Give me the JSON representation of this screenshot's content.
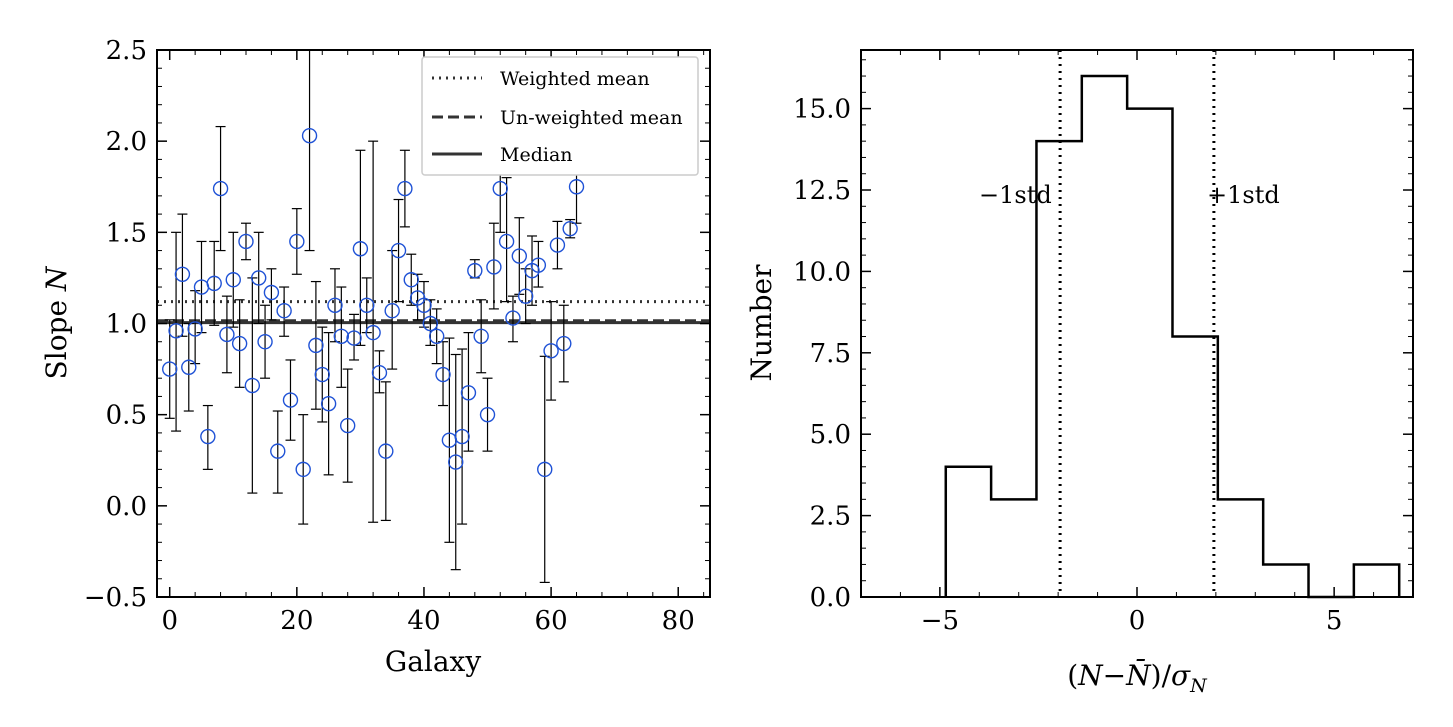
{
  "chart_data": [
    {
      "type": "scatter",
      "xlabel": "Galaxy",
      "ylabel_prefix": "Slope ",
      "ylabel_var": "N",
      "xlim": [
        -2,
        85
      ],
      "ylim": [
        -0.5,
        2.5
      ],
      "xticks": [
        0,
        20,
        40,
        60,
        80
      ],
      "xtick_labels": [
        "0",
        "20",
        "40",
        "60",
        "80"
      ],
      "yticks": [
        -0.5,
        0.0,
        0.5,
        1.0,
        1.5,
        2.0,
        2.5
      ],
      "ytick_labels": [
        "−0.5",
        "0.0",
        "0.5",
        "1.0",
        "1.5",
        "2.0",
        "2.5"
      ],
      "marker_color": "#1f52d6",
      "lines": [
        {
          "name": "Weighted mean",
          "y": 1.12,
          "style": "dotted"
        },
        {
          "name": "Un-weighted mean",
          "y": 1.015,
          "style": "dashed"
        },
        {
          "name": "Median",
          "y": 1.005,
          "style": "solid"
        }
      ],
      "legend_placement": "top-right",
      "points": [
        {
          "x": 0,
          "y": 0.75,
          "lo": 0.48,
          "hi": 1.02
        },
        {
          "x": 1,
          "y": 0.96,
          "lo": 0.41,
          "hi": 1.5
        },
        {
          "x": 2,
          "y": 1.27,
          "lo": 0.93,
          "hi": 1.6
        },
        {
          "x": 3,
          "y": 0.76,
          "lo": 0.52,
          "hi": 1.0
        },
        {
          "x": 4,
          "y": 0.97,
          "lo": 0.78,
          "hi": 1.18
        },
        {
          "x": 5,
          "y": 1.2,
          "lo": 0.95,
          "hi": 1.45
        },
        {
          "x": 6,
          "y": 0.38,
          "lo": 0.2,
          "hi": 0.55
        },
        {
          "x": 7,
          "y": 1.22,
          "lo": 0.99,
          "hi": 1.45
        },
        {
          "x": 8,
          "y": 1.74,
          "lo": 1.4,
          "hi": 2.08
        },
        {
          "x": 9,
          "y": 0.94,
          "lo": 0.73,
          "hi": 1.15
        },
        {
          "x": 10,
          "y": 1.24,
          "lo": 0.98,
          "hi": 1.5
        },
        {
          "x": 11,
          "y": 0.89,
          "lo": 0.65,
          "hi": 1.13
        },
        {
          "x": 12,
          "y": 1.45,
          "lo": 1.35,
          "hi": 1.55
        },
        {
          "x": 13,
          "y": 0.66,
          "lo": 0.07,
          "hi": 1.25
        },
        {
          "x": 14,
          "y": 1.25,
          "lo": 1.0,
          "hi": 1.5
        },
        {
          "x": 15,
          "y": 0.9,
          "lo": 0.7,
          "hi": 1.1
        },
        {
          "x": 16,
          "y": 1.17,
          "lo": 1.02,
          "hi": 1.3
        },
        {
          "x": 17,
          "y": 0.3,
          "lo": 0.07,
          "hi": 0.52
        },
        {
          "x": 18,
          "y": 1.07,
          "lo": 0.93,
          "hi": 1.2
        },
        {
          "x": 19,
          "y": 0.58,
          "lo": 0.36,
          "hi": 0.8
        },
        {
          "x": 20,
          "y": 1.45,
          "lo": 1.27,
          "hi": 1.63
        },
        {
          "x": 21,
          "y": 0.2,
          "lo": -0.1,
          "hi": 0.5
        },
        {
          "x": 22,
          "y": 2.03,
          "lo": 1.4,
          "hi": 2.55
        },
        {
          "x": 23,
          "y": 0.88,
          "lo": 0.53,
          "hi": 1.23
        },
        {
          "x": 24,
          "y": 0.72,
          "lo": 0.46,
          "hi": 0.98
        },
        {
          "x": 25,
          "y": 0.56,
          "lo": 0.17,
          "hi": 0.95
        },
        {
          "x": 26,
          "y": 1.1,
          "lo": 0.9,
          "hi": 1.3
        },
        {
          "x": 27,
          "y": 0.93,
          "lo": 0.65,
          "hi": 1.2
        },
        {
          "x": 28,
          "y": 0.44,
          "lo": 0.13,
          "hi": 0.75
        },
        {
          "x": 29,
          "y": 0.92,
          "lo": 0.8,
          "hi": 1.05
        },
        {
          "x": 30,
          "y": 1.41,
          "lo": 0.88,
          "hi": 1.95
        },
        {
          "x": 31,
          "y": 1.1,
          "lo": 0.95,
          "hi": 1.25
        },
        {
          "x": 32,
          "y": 0.95,
          "lo": -0.09,
          "hi": 2.0
        },
        {
          "x": 33,
          "y": 0.73,
          "lo": 0.62,
          "hi": 0.85
        },
        {
          "x": 34,
          "y": 0.3,
          "lo": -0.08,
          "hi": 0.68
        },
        {
          "x": 35,
          "y": 1.07,
          "lo": 0.75,
          "hi": 1.4
        },
        {
          "x": 36,
          "y": 1.4,
          "lo": 1.12,
          "hi": 1.68
        },
        {
          "x": 37,
          "y": 1.74,
          "lo": 1.53,
          "hi": 1.95
        },
        {
          "x": 38,
          "y": 1.24,
          "lo": 1.1,
          "hi": 1.38
        },
        {
          "x": 39,
          "y": 1.14,
          "lo": 1.02,
          "hi": 1.27
        },
        {
          "x": 40,
          "y": 1.1,
          "lo": 0.98,
          "hi": 1.23
        },
        {
          "x": 41,
          "y": 1.0,
          "lo": 0.88,
          "hi": 1.13
        },
        {
          "x": 42,
          "y": 0.93,
          "lo": 0.78,
          "hi": 1.08
        },
        {
          "x": 43,
          "y": 0.72,
          "lo": 0.55,
          "hi": 0.9
        },
        {
          "x": 44,
          "y": 0.36,
          "lo": -0.2,
          "hi": 0.92
        },
        {
          "x": 45,
          "y": 0.24,
          "lo": -0.35,
          "hi": 0.83
        },
        {
          "x": 46,
          "y": 0.38,
          "lo": -0.1,
          "hi": 0.86
        },
        {
          "x": 47,
          "y": 0.62,
          "lo": 0.3,
          "hi": 0.95
        },
        {
          "x": 48,
          "y": 1.29,
          "lo": 1.25,
          "hi": 1.35
        },
        {
          "x": 49,
          "y": 0.93,
          "lo": 0.73,
          "hi": 1.13
        },
        {
          "x": 50,
          "y": 0.5,
          "lo": 0.3,
          "hi": 0.7
        },
        {
          "x": 51,
          "y": 1.31,
          "lo": 1.08,
          "hi": 1.55
        },
        {
          "x": 52,
          "y": 1.74,
          "lo": 1.5,
          "hi": 1.97
        },
        {
          "x": 53,
          "y": 1.45,
          "lo": 1.12,
          "hi": 1.8
        },
        {
          "x": 54,
          "y": 1.03,
          "lo": 0.9,
          "hi": 1.15
        },
        {
          "x": 55,
          "y": 1.37,
          "lo": 1.16,
          "hi": 1.58
        },
        {
          "x": 56,
          "y": 1.15,
          "lo": 1.0,
          "hi": 1.3
        },
        {
          "x": 57,
          "y": 1.29,
          "lo": 1.1,
          "hi": 1.48
        },
        {
          "x": 58,
          "y": 1.32,
          "lo": 1.2,
          "hi": 1.45
        },
        {
          "x": 59,
          "y": 0.2,
          "lo": -0.42,
          "hi": 0.82
        },
        {
          "x": 60,
          "y": 0.85,
          "lo": 0.58,
          "hi": 1.12
        },
        {
          "x": 61,
          "y": 1.43,
          "lo": 1.3,
          "hi": 1.56
        },
        {
          "x": 62,
          "y": 0.89,
          "lo": 0.68,
          "hi": 1.1
        },
        {
          "x": 63,
          "y": 1.52,
          "lo": 1.47,
          "hi": 1.57
        },
        {
          "x": 64,
          "y": 1.75,
          "lo": 1.55,
          "hi": 1.95
        }
      ]
    },
    {
      "type": "histogram",
      "xlabel_parts": {
        "open": "(",
        "var": "N",
        "minus": "−",
        "bar": "N̄",
        "close": ")/",
        "sigma": "σ",
        "sub": "N"
      },
      "ylabel": "Number",
      "xlim": [
        -7,
        7
      ],
      "ylim": [
        0,
        16.8
      ],
      "xticks": [
        -5,
        0,
        5
      ],
      "xtick_labels": [
        "−5",
        "0",
        "5"
      ],
      "yticks": [
        0.0,
        2.5,
        5.0,
        7.5,
        10.0,
        12.5,
        15.0
      ],
      "ytick_labels": [
        "0.0",
        "2.5",
        "5.0",
        "7.5",
        "10.0",
        "12.5",
        "15.0"
      ],
      "bin_edges": [
        -4.85,
        -3.7,
        -2.55,
        -1.4,
        -0.25,
        0.9,
        2.05,
        3.2,
        4.35,
        5.5,
        6.65
      ],
      "counts": [
        4,
        3,
        14,
        16,
        15,
        8,
        3,
        1,
        0,
        1
      ],
      "vlines": [
        {
          "x": -1.95,
          "label": "−1std"
        },
        {
          "x": 1.95,
          "label": "+1std"
        }
      ]
    }
  ]
}
